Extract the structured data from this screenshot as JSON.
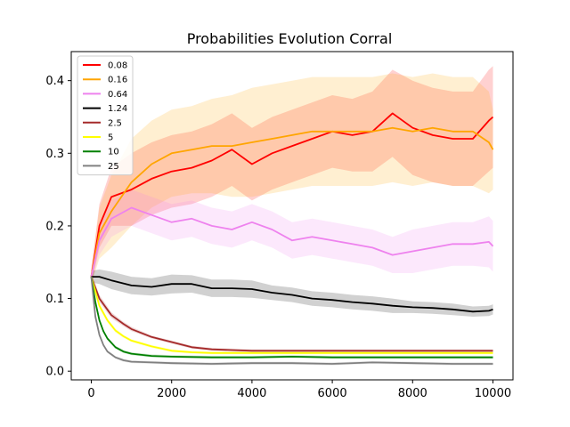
{
  "chart_data": {
    "type": "line",
    "title": "Probabilities Evolution Corral",
    "xlabel": "",
    "ylabel": "",
    "xlim": [
      -500,
      10500
    ],
    "ylim": [
      -0.012,
      0.44
    ],
    "xticks": [
      0,
      2000,
      4000,
      6000,
      8000,
      10000
    ],
    "yticks": [
      0.0,
      0.1,
      0.2,
      0.3,
      0.4
    ],
    "grid": false,
    "legend": "top-left",
    "series": [
      {
        "name": "0.08",
        "color": "#ff0000",
        "x": [
          0,
          200,
          500,
          1000,
          1500,
          2000,
          2500,
          3000,
          3500,
          4000,
          4500,
          5000,
          5500,
          6000,
          6500,
          7000,
          7500,
          8000,
          8500,
          9000,
          9500,
          9900,
          10000
        ],
        "y": [
          0.13,
          0.2,
          0.24,
          0.25,
          0.265,
          0.275,
          0.28,
          0.29,
          0.305,
          0.285,
          0.3,
          0.31,
          0.32,
          0.33,
          0.325,
          0.33,
          0.355,
          0.335,
          0.325,
          0.32,
          0.32,
          0.345,
          0.35
        ],
        "band": [
          0.01,
          0.03,
          0.04,
          0.05,
          0.05,
          0.05,
          0.05,
          0.05,
          0.05,
          0.05,
          0.05,
          0.05,
          0.05,
          0.05,
          0.05,
          0.055,
          0.06,
          0.065,
          0.065,
          0.065,
          0.065,
          0.07,
          0.07
        ]
      },
      {
        "name": "0.16",
        "color": "#ffa500",
        "x": [
          0,
          200,
          500,
          1000,
          1500,
          2000,
          2500,
          3000,
          3500,
          4000,
          4500,
          5000,
          5500,
          6000,
          6500,
          7000,
          7500,
          8000,
          8500,
          9000,
          9500,
          9900,
          10000
        ],
        "y": [
          0.13,
          0.19,
          0.22,
          0.26,
          0.285,
          0.3,
          0.305,
          0.31,
          0.31,
          0.315,
          0.32,
          0.325,
          0.33,
          0.33,
          0.33,
          0.33,
          0.335,
          0.33,
          0.335,
          0.33,
          0.33,
          0.315,
          0.305
        ],
        "band": [
          0.01,
          0.035,
          0.05,
          0.06,
          0.06,
          0.06,
          0.06,
          0.065,
          0.07,
          0.075,
          0.075,
          0.075,
          0.075,
          0.075,
          0.075,
          0.075,
          0.075,
          0.075,
          0.075,
          0.075,
          0.075,
          0.07,
          0.055
        ]
      },
      {
        "name": "0.64",
        "color": "#ee82ee",
        "x": [
          0,
          200,
          500,
          1000,
          1500,
          2000,
          2500,
          3000,
          3500,
          4000,
          4500,
          5000,
          5500,
          6000,
          6500,
          7000,
          7500,
          8000,
          8500,
          9000,
          9500,
          9900,
          10000
        ],
        "y": [
          0.13,
          0.18,
          0.21,
          0.225,
          0.215,
          0.205,
          0.21,
          0.2,
          0.195,
          0.205,
          0.195,
          0.18,
          0.185,
          0.18,
          0.175,
          0.17,
          0.16,
          0.165,
          0.17,
          0.175,
          0.175,
          0.178,
          0.172
        ],
        "band": [
          0.01,
          0.02,
          0.025,
          0.025,
          0.025,
          0.025,
          0.025,
          0.025,
          0.025,
          0.025,
          0.025,
          0.025,
          0.025,
          0.025,
          0.025,
          0.025,
          0.025,
          0.03,
          0.03,
          0.03,
          0.03,
          0.035,
          0.035
        ]
      },
      {
        "name": "1.24",
        "color": "#000000",
        "x": [
          0,
          200,
          500,
          1000,
          1500,
          2000,
          2500,
          3000,
          3500,
          4000,
          4500,
          5000,
          5500,
          6000,
          6500,
          7000,
          7500,
          8000,
          8500,
          9000,
          9500,
          9900,
          10000
        ],
        "y": [
          0.13,
          0.13,
          0.125,
          0.118,
          0.116,
          0.12,
          0.12,
          0.114,
          0.114,
          0.113,
          0.108,
          0.105,
          0.1,
          0.098,
          0.095,
          0.093,
          0.09,
          0.088,
          0.087,
          0.085,
          0.082,
          0.083,
          0.085
        ],
        "band": [
          0.008,
          0.01,
          0.012,
          0.012,
          0.012,
          0.013,
          0.012,
          0.012,
          0.012,
          0.012,
          0.01,
          0.01,
          0.01,
          0.01,
          0.01,
          0.01,
          0.01,
          0.008,
          0.008,
          0.008,
          0.007,
          0.007,
          0.007
        ]
      },
      {
        "name": "2.5",
        "color": "#a52a2a",
        "x": [
          0,
          200,
          500,
          800,
          1000,
          1500,
          2000,
          2500,
          3000,
          3500,
          4000,
          5000,
          6000,
          7000,
          8000,
          9000,
          10000
        ],
        "y": [
          0.13,
          0.1,
          0.077,
          0.065,
          0.058,
          0.047,
          0.04,
          0.033,
          0.03,
          0.029,
          0.028,
          0.028,
          0.028,
          0.028,
          0.028,
          0.028,
          0.028
        ],
        "band": [
          0.005,
          0.005,
          0.004,
          0.003,
          0.003,
          0.002,
          0.002,
          0.002,
          0.002,
          0.002,
          0.002,
          0.002,
          0.002,
          0.002,
          0.002,
          0.002,
          0.002
        ]
      },
      {
        "name": "5",
        "color": "#ffff00",
        "x": [
          0,
          200,
          400,
          600,
          800,
          1000,
          1500,
          2000,
          2500,
          3000,
          4000,
          5000,
          6000,
          7000,
          8000,
          9000,
          10000
        ],
        "y": [
          0.13,
          0.09,
          0.07,
          0.056,
          0.048,
          0.042,
          0.034,
          0.028,
          0.026,
          0.025,
          0.025,
          0.025,
          0.025,
          0.025,
          0.025,
          0.025,
          0.025
        ],
        "band": [
          0.004,
          0.004,
          0.003,
          0.003,
          0.002,
          0.002,
          0.002,
          0.002,
          0.002,
          0.002,
          0.002,
          0.002,
          0.002,
          0.002,
          0.002,
          0.002,
          0.002
        ]
      },
      {
        "name": "10",
        "color": "#008000",
        "x": [
          0,
          100,
          200,
          300,
          400,
          600,
          800,
          1000,
          1500,
          2000,
          3000,
          4000,
          5000,
          6000,
          7000,
          8000,
          9000,
          10000
        ],
        "y": [
          0.13,
          0.095,
          0.07,
          0.055,
          0.045,
          0.033,
          0.027,
          0.024,
          0.021,
          0.02,
          0.019,
          0.019,
          0.02,
          0.019,
          0.019,
          0.019,
          0.019,
          0.019
        ],
        "band": [
          0.004,
          0.003,
          0.003,
          0.002,
          0.002,
          0.002,
          0.002,
          0.002,
          0.002,
          0.002,
          0.002,
          0.002,
          0.002,
          0.002,
          0.002,
          0.002,
          0.002,
          0.002
        ]
      },
      {
        "name": "25",
        "color": "#808080",
        "x": [
          0,
          100,
          200,
          300,
          400,
          600,
          800,
          1000,
          1500,
          2000,
          3000,
          4000,
          5000,
          6000,
          7000,
          8000,
          9000,
          10000
        ],
        "y": [
          0.13,
          0.075,
          0.05,
          0.036,
          0.027,
          0.019,
          0.015,
          0.013,
          0.012,
          0.011,
          0.01,
          0.011,
          0.011,
          0.01,
          0.012,
          0.011,
          0.01,
          0.01
        ],
        "band": [
          0.004,
          0.003,
          0.002,
          0.002,
          0.002,
          0.002,
          0.002,
          0.002,
          0.002,
          0.002,
          0.002,
          0.002,
          0.002,
          0.002,
          0.002,
          0.002,
          0.002,
          0.002
        ]
      }
    ]
  }
}
